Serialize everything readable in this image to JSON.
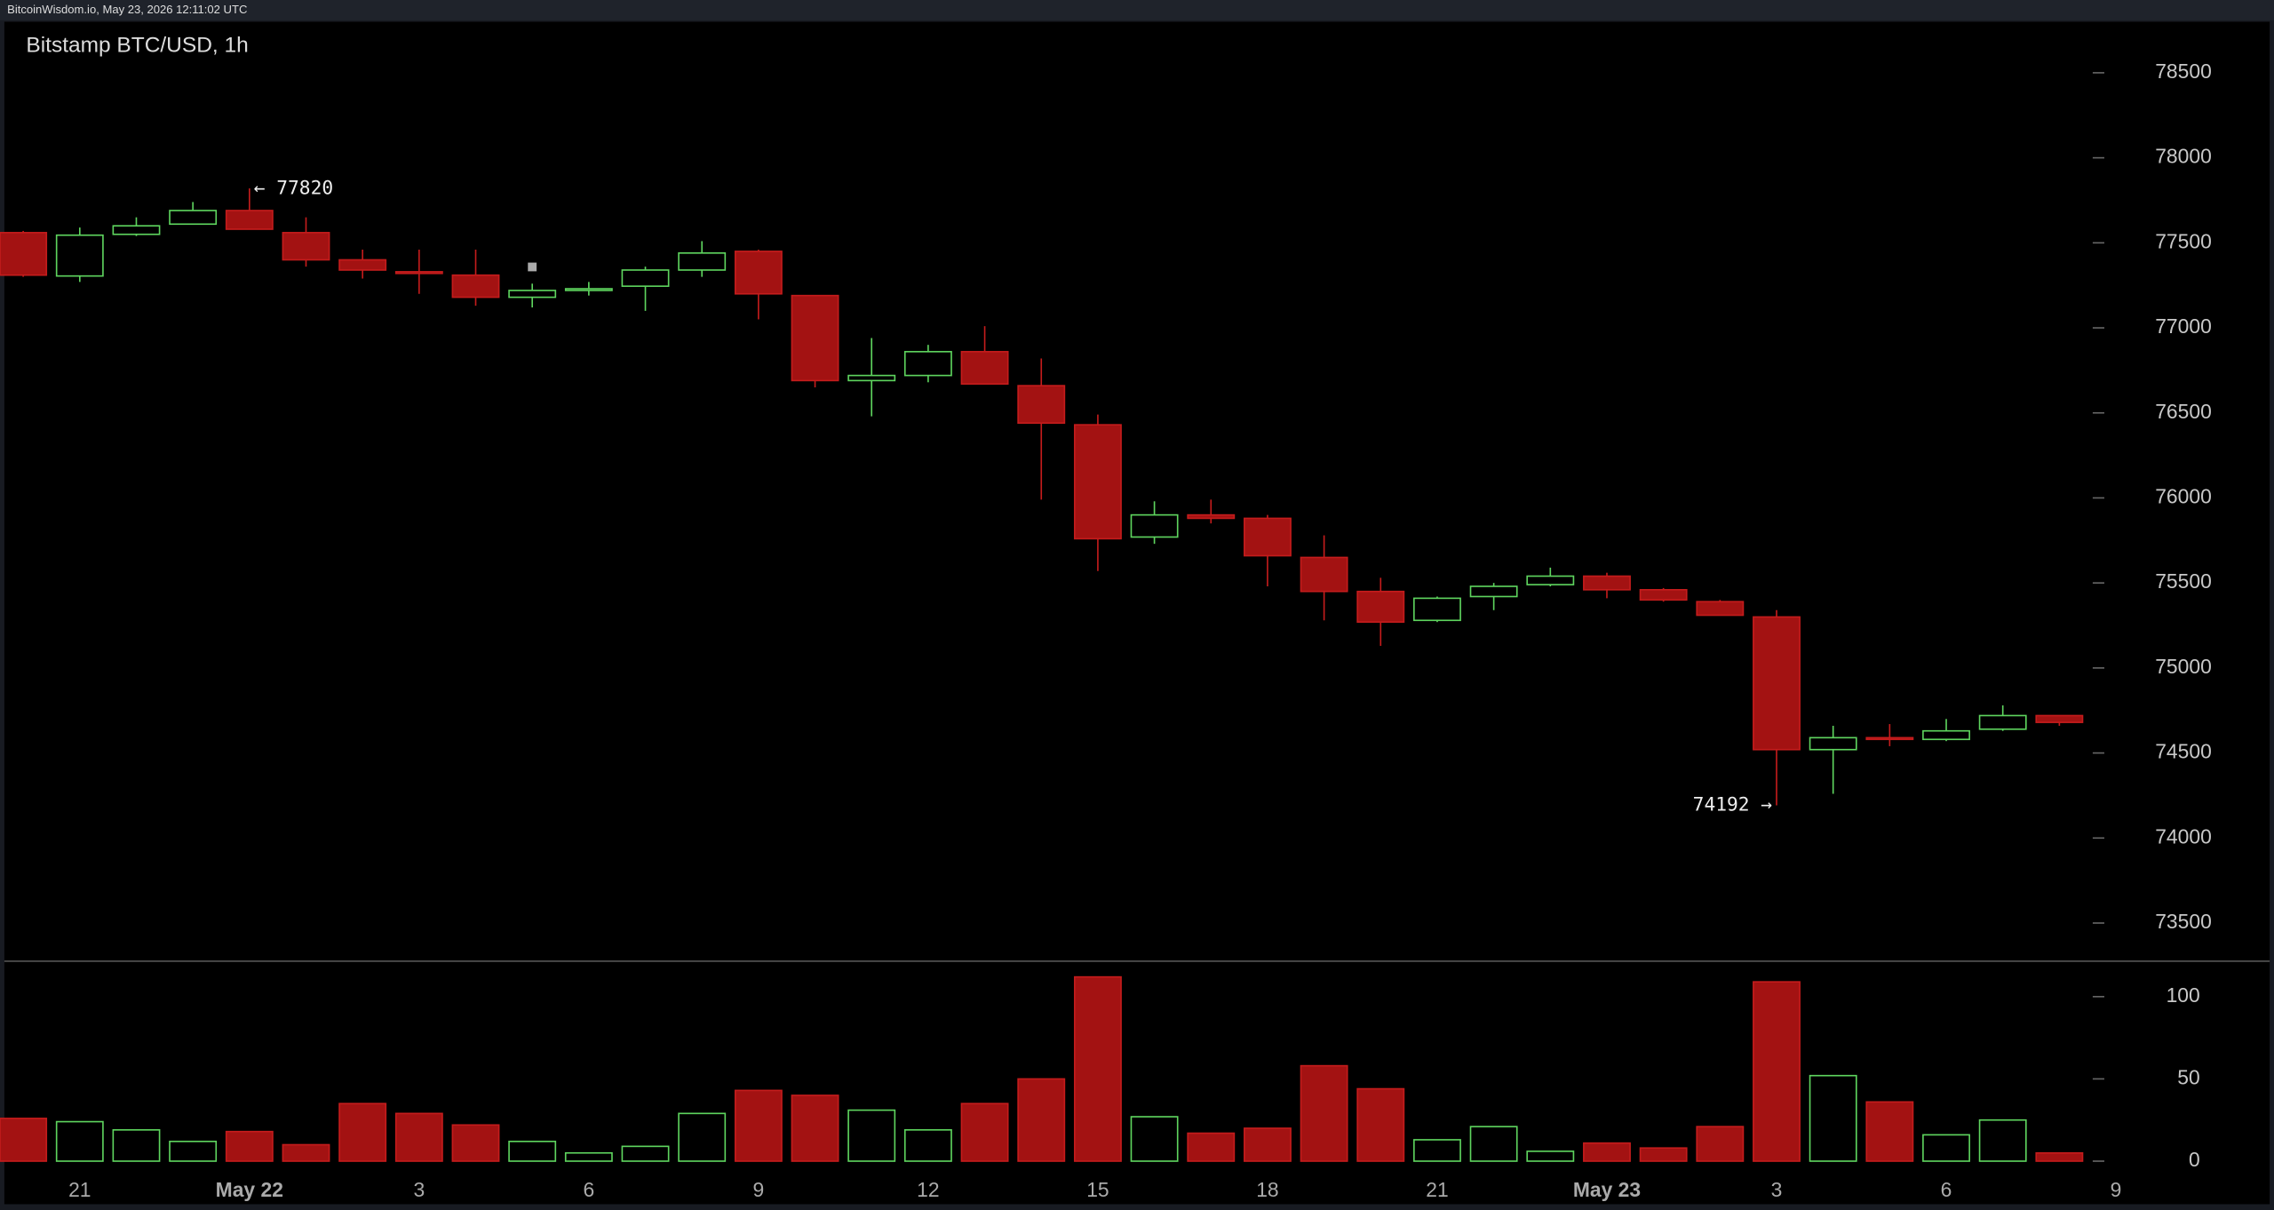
{
  "header": {
    "text": "BitcoinWisdom.io, May 23, 2026 12:11:02 UTC"
  },
  "chart_data": {
    "type": "candlestick",
    "title": "Bitstamp BTC/USD, 1h",
    "categories": [
      null,
      "21",
      null,
      null,
      "May 22",
      null,
      null,
      "3",
      null,
      null,
      "6",
      null,
      null,
      "9",
      null,
      null,
      "12",
      null,
      null,
      "15",
      null,
      null,
      "18",
      null,
      null,
      "21",
      null,
      null,
      "May 23",
      null,
      null,
      "3",
      null,
      null,
      "6",
      null,
      null,
      "9"
    ],
    "open": [
      77560,
      77305,
      77550,
      77610,
      77690,
      77560,
      77400,
      77330,
      77310,
      77180,
      77220,
      77245,
      77340,
      77450,
      77190,
      76690,
      76720,
      76860,
      76660,
      76430,
      75770,
      75900,
      75880,
      75650,
      75450,
      75280,
      75420,
      75490,
      75540,
      75460,
      75390,
      75300,
      74520,
      74590,
      74580,
      74640,
      74720,
      null
    ],
    "high": [
      77570,
      77590,
      77650,
      77740,
      77820,
      77650,
      77460,
      77460,
      77460,
      77260,
      77270,
      77360,
      77510,
      77460,
      77190,
      76940,
      76900,
      77010,
      76820,
      76490,
      75980,
      75990,
      75900,
      75780,
      75530,
      75420,
      75500,
      75590,
      75560,
      75470,
      75400,
      75340,
      74660,
      74670,
      74700,
      74780,
      74720,
      null
    ],
    "low": [
      77300,
      77270,
      77540,
      77610,
      77580,
      77360,
      77290,
      77200,
      77130,
      77120,
      77190,
      77100,
      77300,
      77050,
      76650,
      76480,
      76680,
      76670,
      75990,
      75570,
      75730,
      75850,
      75480,
      75280,
      75130,
      75270,
      75340,
      75480,
      75410,
      75390,
      75310,
      74192,
      74260,
      74540,
      74570,
      74630,
      74660,
      null
    ],
    "close": [
      77310,
      77545,
      77600,
      77690,
      77580,
      77400,
      77340,
      77320,
      77180,
      77220,
      77230,
      77340,
      77440,
      77200,
      76690,
      76720,
      76860,
      76670,
      76440,
      75760,
      75900,
      75880,
      75660,
      75450,
      75270,
      75410,
      75480,
      75540,
      75460,
      75400,
      75310,
      74520,
      74590,
      74580,
      74630,
      74720,
      74680,
      null
    ],
    "volume": [
      26,
      24,
      19,
      12,
      18,
      10,
      35,
      29,
      22,
      12,
      5,
      9,
      29,
      43,
      40,
      31,
      19,
      35,
      50,
      112,
      27,
      17,
      20,
      58,
      44,
      13,
      21,
      6,
      11,
      8,
      21,
      109,
      52,
      36,
      16,
      25,
      5,
      null
    ],
    "ylim": [
      73280,
      78800
    ],
    "yticks": [
      73500,
      74000,
      74500,
      75000,
      75500,
      76000,
      76500,
      77000,
      77500,
      78000,
      78500
    ],
    "volume_ylim": [
      -5,
      122
    ],
    "volume_yticks": [
      0,
      50,
      100
    ],
    "up_color": "#5ed45e",
    "down_color": "#a31212",
    "annotations": [
      {
        "text": "← 77820"
      },
      {
        "text": "74192 →"
      }
    ]
  }
}
